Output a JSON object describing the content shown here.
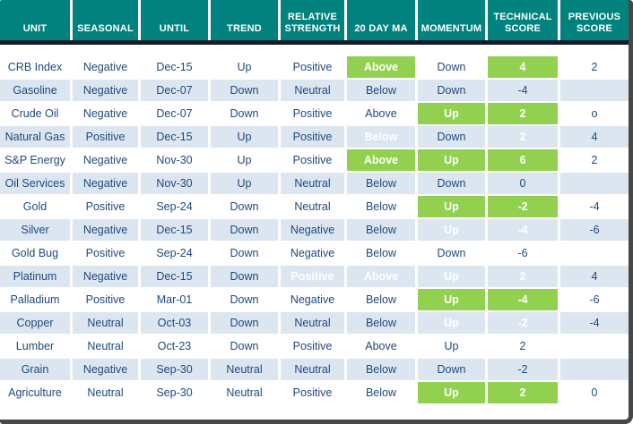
{
  "colors": {
    "header_bg": "#01827E",
    "rule": "#171C27",
    "frame": "#474747",
    "stripe": "#DCE6F1",
    "text": "#1F497D",
    "green": "#92D050",
    "red": "#F93B3B",
    "highlight_text": "#FFFFFF"
  },
  "table": {
    "columns": [
      {
        "key": "unit",
        "label": "UNIT"
      },
      {
        "key": "seasonal",
        "label": "SEASONAL"
      },
      {
        "key": "until",
        "label": "UNTIL"
      },
      {
        "key": "trend",
        "label": "TREND"
      },
      {
        "key": "relative-strength",
        "label": "RELATIVE STRENGTH"
      },
      {
        "key": "20-day-ma",
        "label": "20 DAY MA"
      },
      {
        "key": "momentum",
        "label": "MOMENTUM"
      },
      {
        "key": "technical-score",
        "label": "TECHNICAL SCORE"
      },
      {
        "key": "previous-score",
        "label": "PREVIOUS SCORE"
      }
    ],
    "rows": [
      [
        "CRB Index",
        "Negative",
        "Dec-15",
        "Up",
        "Positive",
        {
          "text": "Above",
          "highlight": "green"
        },
        "Down",
        {
          "text": "4",
          "highlight": "green"
        },
        "2"
      ],
      [
        "Gasoline",
        "Negative",
        "Dec-07",
        "Down",
        "Neutral",
        "Below",
        "Down",
        "-4",
        ""
      ],
      [
        "Crude Oil",
        "Negative",
        "Dec-07",
        "Down",
        "Positive",
        "Above",
        {
          "text": "Up",
          "highlight": "green"
        },
        {
          "text": "2",
          "highlight": "green"
        },
        "o"
      ],
      [
        "Natural Gas",
        "Positive",
        "Dec-15",
        "Up",
        "Positive",
        {
          "text": "Below",
          "highlight": "red"
        },
        "Down",
        {
          "text": "2",
          "highlight": "red"
        },
        "4"
      ],
      [
        "S&P Energy",
        "Negative",
        "Nov-30",
        "Up",
        "Positive",
        {
          "text": "Above",
          "highlight": "green"
        },
        {
          "text": "Up",
          "highlight": "green"
        },
        {
          "text": "6",
          "highlight": "green"
        },
        "2"
      ],
      [
        "Oil Services",
        "Negative",
        "Nov-30",
        "Up",
        "Neutral",
        "Below",
        "Down",
        "0",
        ""
      ],
      [
        "Gold",
        "Positive",
        "Sep-24",
        "Down",
        "Neutral",
        "Below",
        {
          "text": "Up",
          "highlight": "green"
        },
        {
          "text": "-2",
          "highlight": "green"
        },
        "-4"
      ],
      [
        "Silver",
        "Negative",
        "Dec-15",
        "Down",
        "Negative",
        "Below",
        {
          "text": "Up",
          "highlight": "green"
        },
        {
          "text": "-4",
          "highlight": "green"
        },
        "-6"
      ],
      [
        "Gold Bug",
        "Positive",
        "Sep-24",
        "Down",
        "Negative",
        "Below",
        "Down",
        "-6",
        ""
      ],
      [
        "Platinum",
        "Negative",
        "Dec-15",
        "Down",
        {
          "text": "Positive",
          "highlight": "green"
        },
        {
          "text": "Above",
          "highlight": "green"
        },
        {
          "text": "Up",
          "highlight": "green"
        },
        {
          "text": "2",
          "highlight": "green"
        },
        "4"
      ],
      [
        "Palladium",
        "Positive",
        "Mar-01",
        "Down",
        "Negative",
        "Below",
        {
          "text": "Up",
          "highlight": "green"
        },
        {
          "text": "-4",
          "highlight": "green"
        },
        "-6"
      ],
      [
        "Copper",
        "Neutral",
        "Oct-03",
        "Down",
        "Neutral",
        "Below",
        {
          "text": "Up",
          "highlight": "green"
        },
        {
          "text": "-2",
          "highlight": "green"
        },
        "-4"
      ],
      [
        "Lumber",
        "Neutral",
        "Oct-23",
        "Down",
        "Positive",
        "Above",
        "Up",
        "2",
        ""
      ],
      [
        "Grain",
        "Negative",
        "Sep-30",
        "Neutral",
        "Neutral",
        "Below",
        "Down",
        "-2",
        ""
      ],
      [
        "Agriculture",
        "Neutral",
        "Sep-30",
        "Neutral",
        "Positive",
        "Below",
        {
          "text": "Up",
          "highlight": "green"
        },
        {
          "text": "2",
          "highlight": "green"
        },
        "0"
      ]
    ]
  }
}
